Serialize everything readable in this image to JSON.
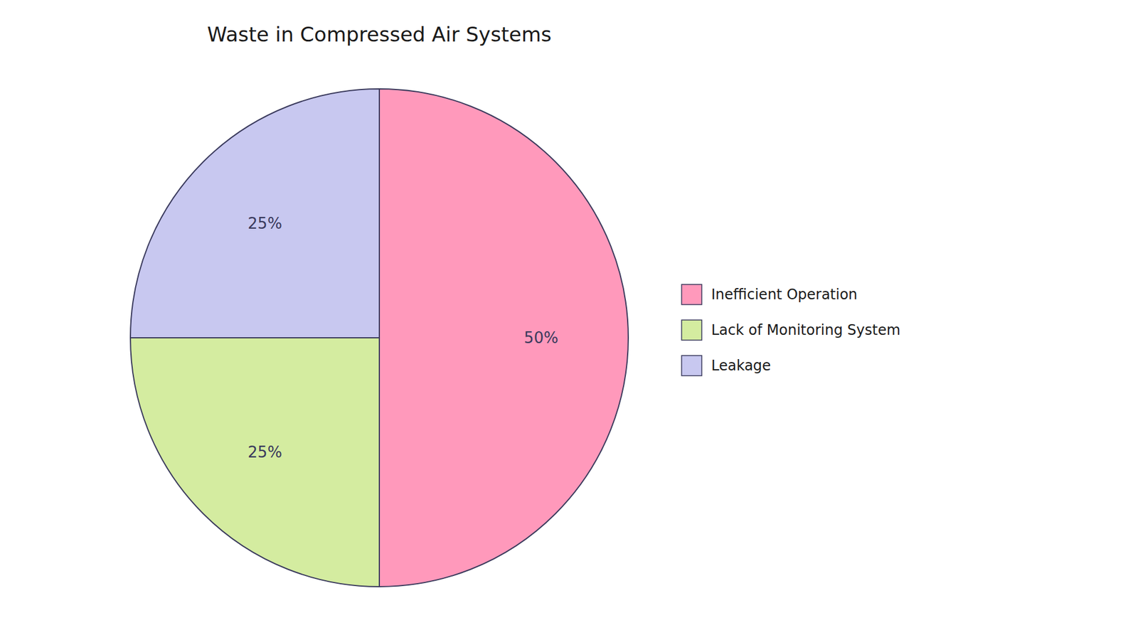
{
  "chart_data": {
    "type": "pie",
    "title": "Waste in Compressed Air Systems",
    "categories": [
      "Inefficient Operation",
      "Lack of Monitoring System",
      "Leakage"
    ],
    "values": [
      50,
      25,
      25
    ],
    "colors": [
      "#FF99BB",
      "#D4ECA0",
      "#C8C8F0"
    ],
    "data_labels": true,
    "value_labels": [
      "50%",
      "25%",
      "25%"
    ],
    "legend": "right"
  }
}
